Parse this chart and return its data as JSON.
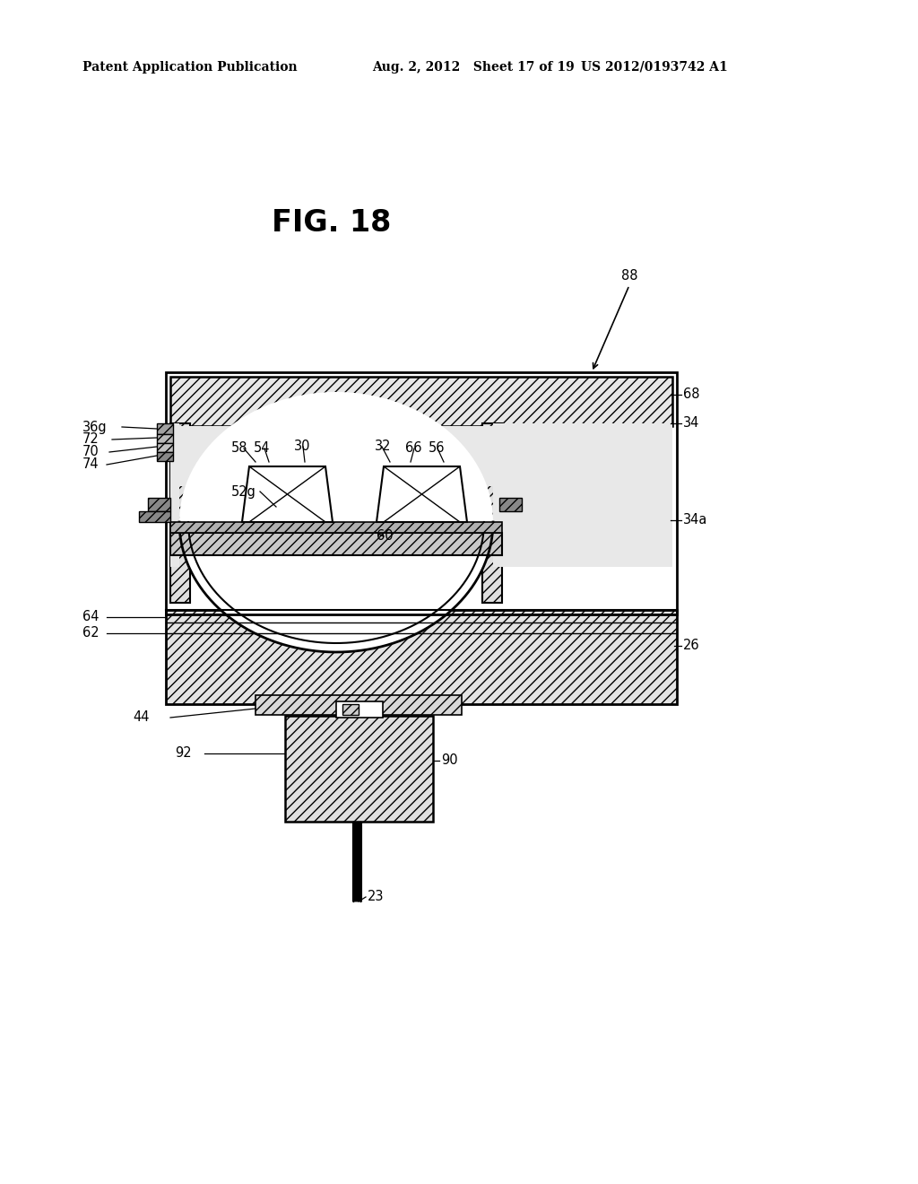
{
  "title": "FIG. 18",
  "header_left": "Patent Application Publication",
  "header_mid": "Aug. 2, 2012   Sheet 17 of 19",
  "header_right": "US 2012/0193742 A1",
  "bg_color": "#ffffff"
}
